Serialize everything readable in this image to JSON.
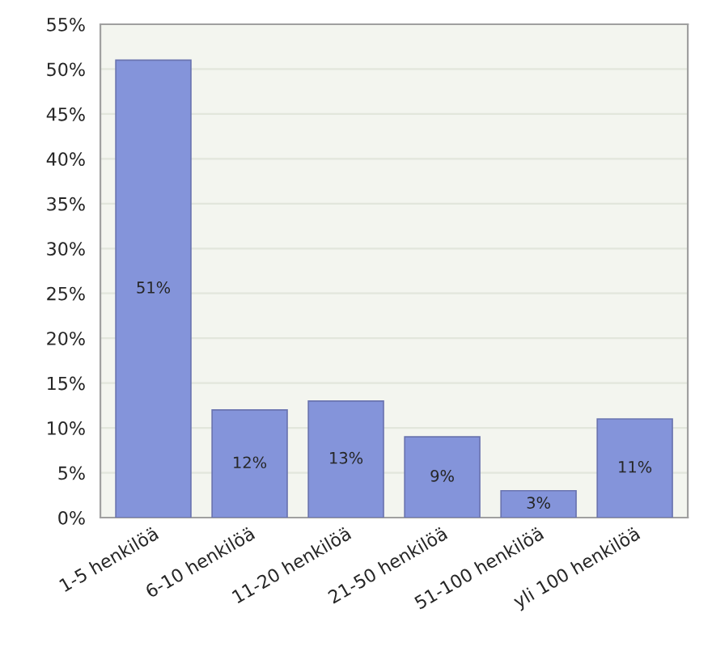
{
  "chart_data": {
    "type": "bar",
    "categories": [
      "1-5 henkilöä",
      "6-10 henkilöä",
      "11-20 henkilöä",
      "21-50 henkilöä",
      "51-100 henkilöä",
      "yli 100 henkilöä"
    ],
    "values": [
      51,
      12,
      13,
      9,
      3,
      11
    ],
    "value_labels": [
      "51%",
      "12%",
      "13%",
      "9%",
      "3%",
      "11%"
    ],
    "color": "#8494da",
    "ylim": [
      0,
      55
    ],
    "yticks": [
      {
        "value": 0,
        "label": "0%"
      },
      {
        "value": 5,
        "label": "5%"
      },
      {
        "value": 10,
        "label": "10%"
      },
      {
        "value": 15,
        "label": "15%"
      },
      {
        "value": 20,
        "label": "20%"
      },
      {
        "value": 25,
        "label": "25%"
      },
      {
        "value": 30,
        "label": "30%"
      },
      {
        "value": 35,
        "label": "35%"
      },
      {
        "value": 40,
        "label": "40%"
      },
      {
        "value": 45,
        "label": "45%"
      },
      {
        "value": 50,
        "label": "50%"
      },
      {
        "value": 55,
        "label": "55%"
      }
    ],
    "grid": "y"
  }
}
